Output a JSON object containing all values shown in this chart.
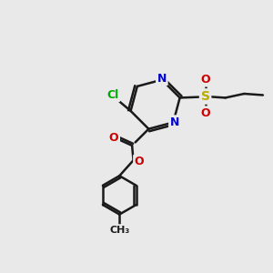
{
  "background_color": "#e9e9e9",
  "bond_color": "#1a1a1a",
  "bond_width": 1.8,
  "atom_colors": {
    "C": "#1a1a1a",
    "N": "#0000cc",
    "O": "#cc0000",
    "S": "#bbaa00",
    "Cl": "#00aa00"
  },
  "font_size": 9,
  "figsize": [
    3.0,
    3.0
  ],
  "dpi": 100
}
